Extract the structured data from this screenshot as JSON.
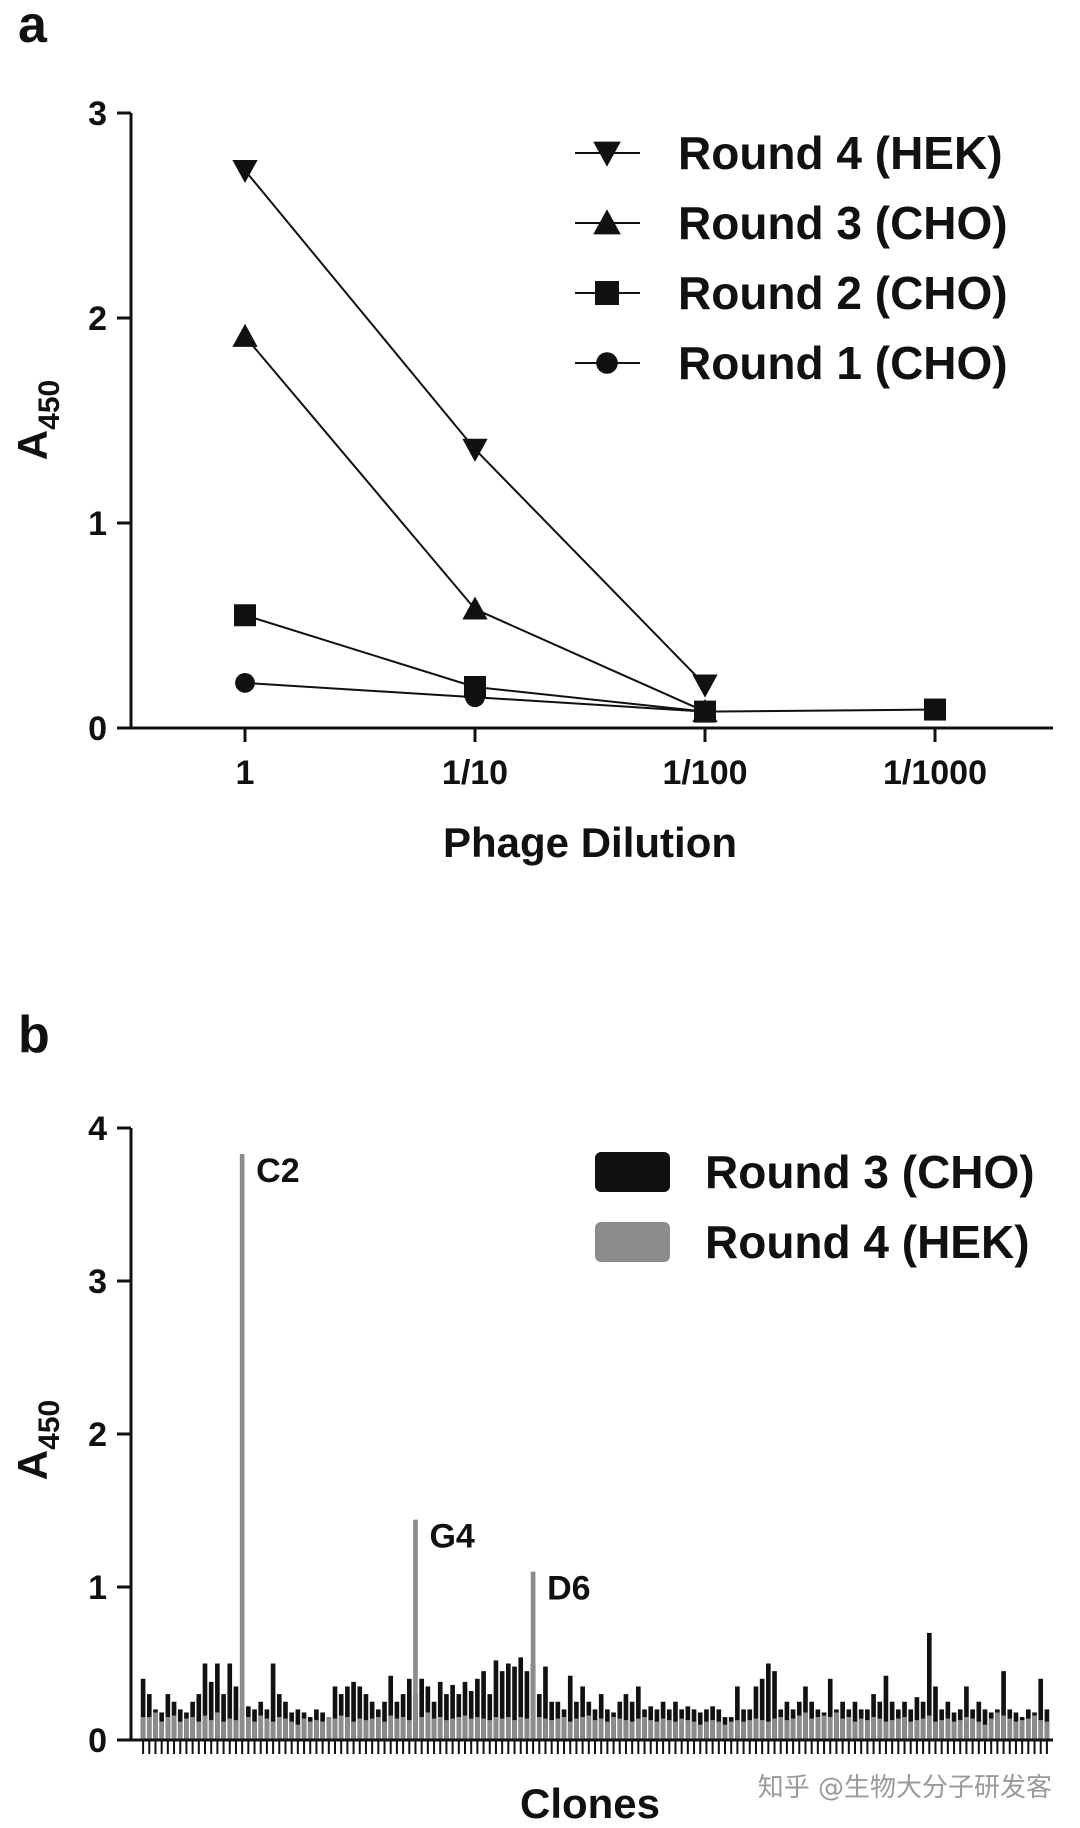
{
  "chart_data": [
    {
      "panel": "a",
      "type": "line",
      "xlabel": "Phage Dilution",
      "ylabel": "A",
      "ylabel_sub": "450",
      "categories": [
        "1",
        "1/10",
        "1/100",
        "1/1000"
      ],
      "ylim": [
        0,
        3
      ],
      "yticks": [
        "0",
        "1",
        "2",
        "3"
      ],
      "legend_position": "top-right",
      "series": [
        {
          "name": "Round 4 (HEK)",
          "marker": "triangle-down",
          "values": [
            2.72,
            1.36,
            0.21,
            null
          ]
        },
        {
          "name": "Round 3 (CHO)",
          "marker": "triangle-up",
          "values": [
            1.91,
            0.58,
            0.08,
            null
          ]
        },
        {
          "name": "Round 2 (CHO)",
          "marker": "square",
          "values": [
            0.55,
            0.2,
            0.08,
            0.09
          ]
        },
        {
          "name": "Round 1 (CHO)",
          "marker": "circle",
          "values": [
            0.22,
            0.15,
            0.08,
            null
          ]
        }
      ]
    },
    {
      "panel": "b",
      "type": "bar",
      "xlabel": "Clones",
      "ylabel": "A",
      "ylabel_sub": "450",
      "ylim": [
        0,
        4
      ],
      "yticks": [
        "0",
        "1",
        "2",
        "3",
        "4"
      ],
      "legend_position": "top-right",
      "annotations": [
        {
          "label": "C2",
          "series": "Round 4 (HEK)",
          "index": 16,
          "value": 3.83
        },
        {
          "label": "G4",
          "series": "Round 4 (HEK)",
          "index": 44,
          "value": 1.44
        },
        {
          "label": "D6",
          "series": "Round 4 (HEK)",
          "index": 63,
          "value": 1.1
        }
      ],
      "series": [
        {
          "name": "Round 3 (CHO)",
          "color": "#111111",
          "values": [
            0.4,
            0.3,
            0.2,
            0.18,
            0.3,
            0.25,
            0.2,
            0.18,
            0.25,
            0.3,
            0.5,
            0.38,
            0.5,
            0.3,
            0.5,
            0.35,
            0.2,
            0.22,
            0.2,
            0.25,
            0.2,
            0.5,
            0.3,
            0.25,
            0.18,
            0.2,
            0.18,
            0.15,
            0.2,
            0.18,
            0.15,
            0.35,
            0.3,
            0.35,
            0.38,
            0.35,
            0.3,
            0.25,
            0.2,
            0.25,
            0.42,
            0.25,
            0.3,
            0.4,
            0.3,
            0.4,
            0.35,
            0.25,
            0.38,
            0.3,
            0.36,
            0.3,
            0.38,
            0.32,
            0.4,
            0.45,
            0.3,
            0.52,
            0.45,
            0.5,
            0.48,
            0.54,
            0.45,
            0.5,
            0.3,
            0.48,
            0.25,
            0.25,
            0.2,
            0.42,
            0.25,
            0.35,
            0.25,
            0.2,
            0.3,
            0.2,
            0.18,
            0.25,
            0.3,
            0.25,
            0.35,
            0.2,
            0.22,
            0.2,
            0.25,
            0.2,
            0.25,
            0.2,
            0.22,
            0.2,
            0.18,
            0.2,
            0.22,
            0.2,
            0.15,
            0.15,
            0.35,
            0.2,
            0.2,
            0.35,
            0.4,
            0.5,
            0.45,
            0.2,
            0.25,
            0.2,
            0.25,
            0.35,
            0.25,
            0.2,
            0.18,
            0.4,
            0.2,
            0.25,
            0.2,
            0.25,
            0.2,
            0.2,
            0.3,
            0.25,
            0.42,
            0.25,
            0.2,
            0.25,
            0.2,
            0.28,
            0.25,
            0.7,
            0.35,
            0.2,
            0.25,
            0.18,
            0.2,
            0.35,
            0.2,
            0.25,
            0.2,
            0.18,
            0.2,
            0.45,
            0.2,
            0.18,
            0.15,
            0.2,
            0.18,
            0.4,
            0.2
          ]
        },
        {
          "name": "Round 4 (HEK)",
          "color": "#8c8c8c",
          "values": [
            0.15,
            0.15,
            0.18,
            0.12,
            0.15,
            0.16,
            0.12,
            0.14,
            0.15,
            0.12,
            0.16,
            0.13,
            0.18,
            0.12,
            0.14,
            0.13,
            3.83,
            0.15,
            0.12,
            0.16,
            0.14,
            0.12,
            0.15,
            0.14,
            0.12,
            0.1,
            0.14,
            0.12,
            0.13,
            0.12,
            0.15,
            0.14,
            0.16,
            0.15,
            0.12,
            0.14,
            0.13,
            0.14,
            0.15,
            0.12,
            0.16,
            0.14,
            0.15,
            0.13,
            1.44,
            0.15,
            0.18,
            0.14,
            0.15,
            0.13,
            0.14,
            0.15,
            0.16,
            0.14,
            0.15,
            0.14,
            0.13,
            0.15,
            0.14,
            0.15,
            0.13,
            0.15,
            0.14,
            1.1,
            0.15,
            0.14,
            0.13,
            0.14,
            0.15,
            0.12,
            0.14,
            0.15,
            0.16,
            0.13,
            0.14,
            0.12,
            0.15,
            0.14,
            0.13,
            0.12,
            0.14,
            0.15,
            0.13,
            0.12,
            0.14,
            0.13,
            0.12,
            0.14,
            0.13,
            0.12,
            0.1,
            0.12,
            0.13,
            0.12,
            0.1,
            0.12,
            0.13,
            0.12,
            0.13,
            0.14,
            0.13,
            0.12,
            0.14,
            0.15,
            0.13,
            0.14,
            0.16,
            0.18,
            0.14,
            0.15,
            0.16,
            0.15,
            0.18,
            0.14,
            0.15,
            0.12,
            0.14,
            0.13,
            0.15,
            0.14,
            0.12,
            0.13,
            0.14,
            0.15,
            0.12,
            0.13,
            0.14,
            0.16,
            0.12,
            0.13,
            0.14,
            0.12,
            0.13,
            0.15,
            0.14,
            0.12,
            0.1,
            0.14,
            0.18,
            0.16,
            0.14,
            0.12,
            0.13,
            0.14,
            0.16,
            0.13,
            0.12
          ]
        }
      ]
    }
  ],
  "labels": {
    "panel_a": "a",
    "panel_b": "b"
  },
  "watermark": "知乎 @生物大分子研发客"
}
